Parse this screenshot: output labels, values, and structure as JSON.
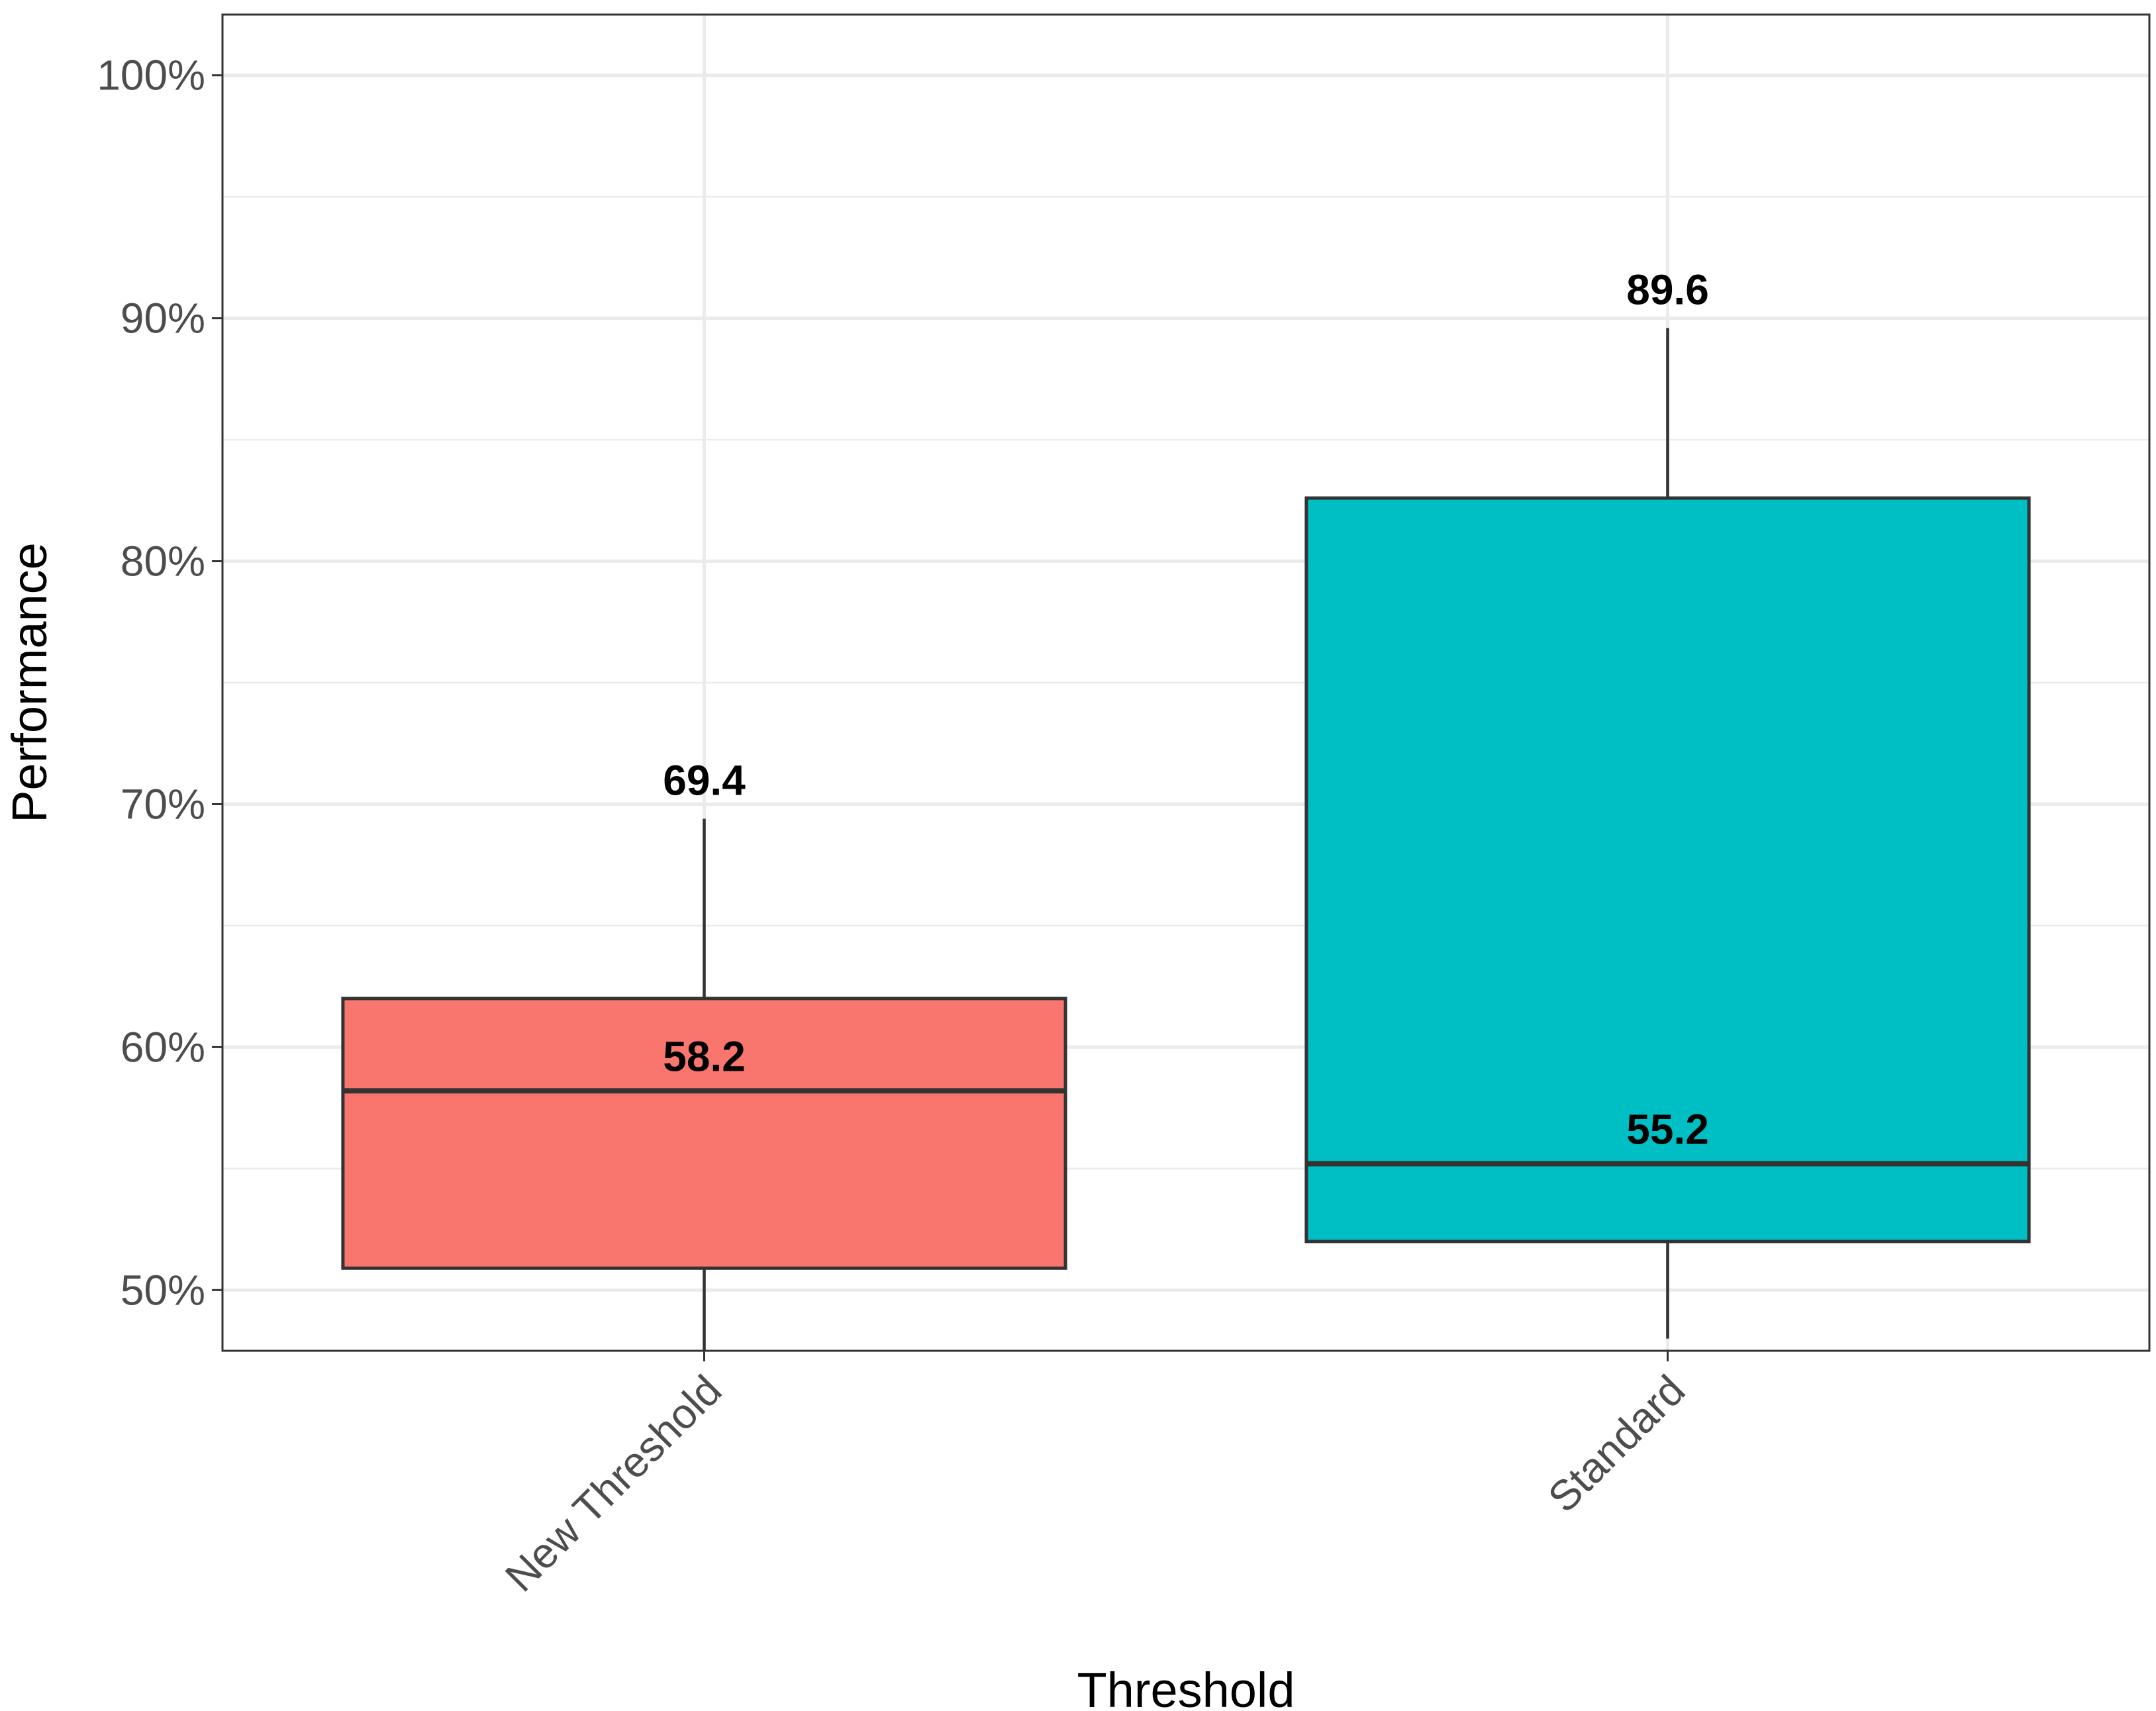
{
  "chart_data": {
    "type": "boxplot",
    "title": "",
    "xlabel": "Threshold",
    "ylabel": "Performance",
    "ylim": [
      47.5,
      102.5
    ],
    "y_ticks": [
      50,
      60,
      70,
      80,
      90,
      100
    ],
    "y_tick_labels": [
      "50%",
      "60%",
      "70%",
      "80%",
      "90%",
      "100%"
    ],
    "grid": true,
    "legend": "none",
    "categories": [
      "New Threshold",
      "Standard"
    ],
    "boxes": [
      {
        "name": "New Threshold",
        "whisker_low": 47.5,
        "q1": 50.9,
        "median": 58.2,
        "q3": 62.0,
        "whisker_high": 69.4,
        "color": "#F8766D",
        "median_label": "58.2",
        "max_label": "69.4"
      },
      {
        "name": "Standard",
        "whisker_low": 48.0,
        "q1": 52.0,
        "median": 55.2,
        "q3": 82.6,
        "whisker_high": 89.6,
        "color": "#00BFC4",
        "median_label": "55.2",
        "max_label": "89.6"
      }
    ]
  }
}
